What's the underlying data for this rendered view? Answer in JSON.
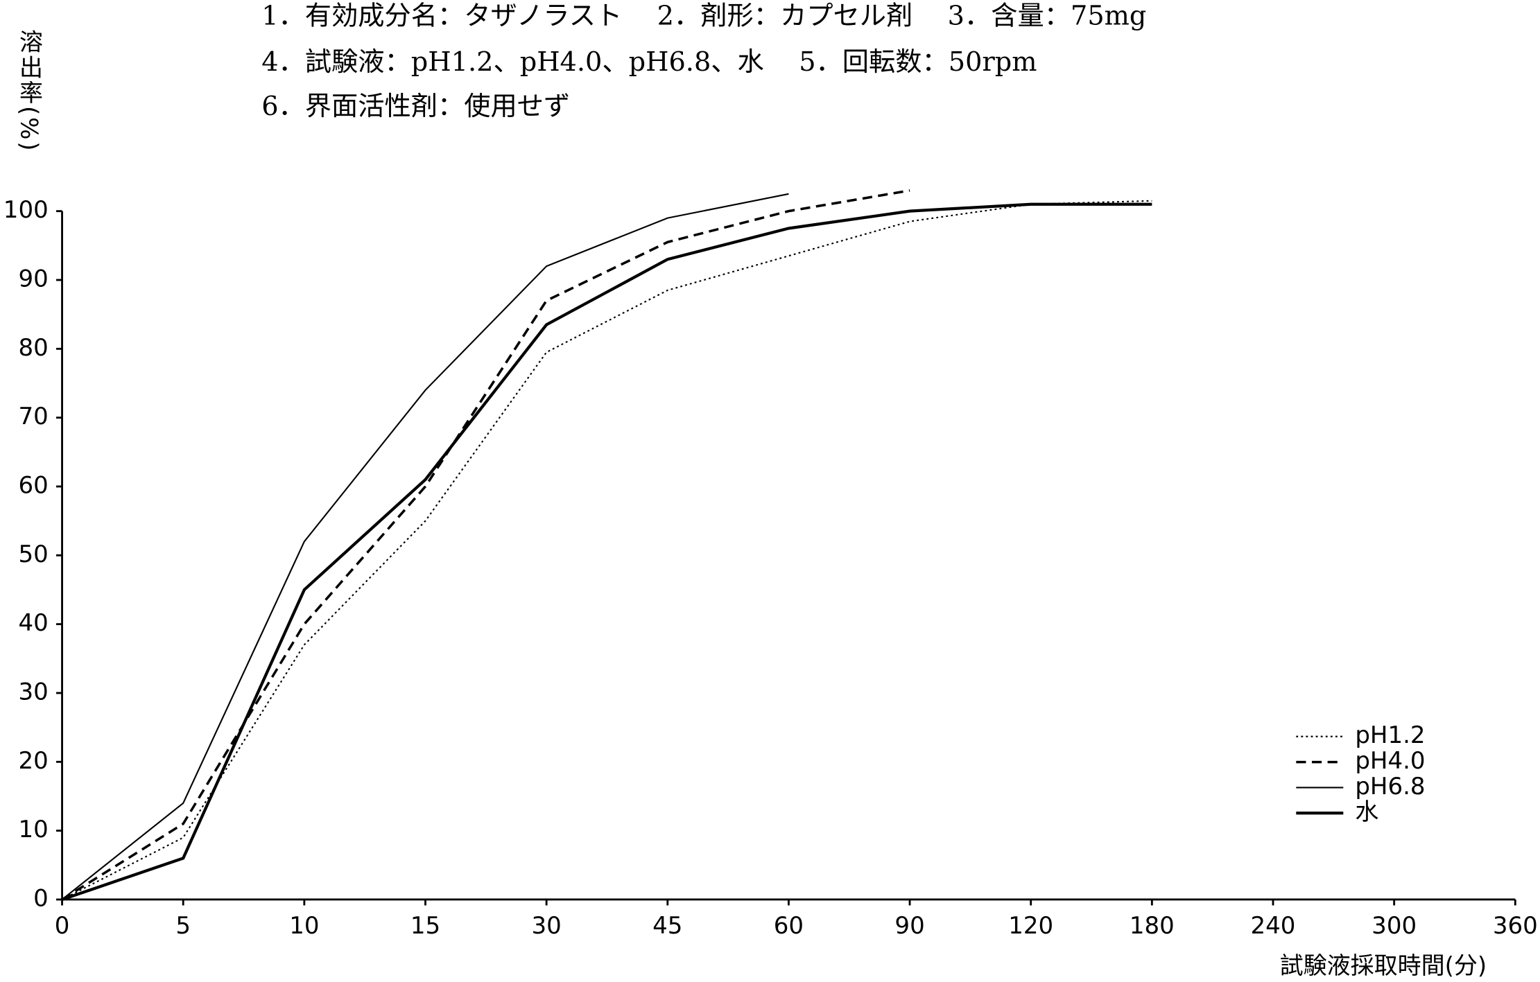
{
  "chart_data": {
    "type": "line",
    "title_lines": [
      "1．有効成分名：タザノラスト　 2．剤形：カプセル剤　 3．含量：75mg",
      "4．試験液：pH1.2、pH4.0、pH6.8、水　 5．回転数：50rpm",
      "6．界面活性剤：使用せず"
    ],
    "y_label": "溶出率(%)",
    "x_label": "試験液採取時間(分)",
    "categories": [
      "0",
      "5",
      "10",
      "15",
      "30",
      "45",
      "60",
      "90",
      "120",
      "180",
      "240",
      "300",
      "360"
    ],
    "ylim": [
      0,
      100
    ],
    "yticks": [
      0,
      10,
      20,
      30,
      40,
      50,
      60,
      70,
      80,
      90,
      100
    ],
    "legend": "lower right",
    "series": [
      {
        "name": "pH1.2",
        "color": "#000000",
        "dash": "dotted",
        "width": 1.5,
        "values": [
          0,
          9,
          37,
          55,
          79.5,
          88.5,
          93.5,
          98.5,
          101,
          101.5,
          null,
          null,
          null
        ]
      },
      {
        "name": "pH4.0",
        "color": "#000000",
        "dash": "dashed",
        "width": 2.5,
        "values": [
          0,
          11,
          40,
          60,
          87,
          95.5,
          100,
          103,
          null,
          null,
          null,
          null,
          null
        ]
      },
      {
        "name": "pH6.8",
        "color": "#000000",
        "dash": "solid",
        "width": 1.5,
        "values": [
          0,
          14,
          52,
          74,
          92,
          99,
          102.5,
          null,
          null,
          null,
          null,
          null,
          null
        ]
      },
      {
        "name": "水",
        "color": "#000000",
        "dash": "solid",
        "width": 3,
        "values": [
          0,
          6,
          45,
          61,
          83.5,
          93,
          97.5,
          100,
          101,
          101,
          null,
          null,
          null
        ]
      }
    ]
  }
}
